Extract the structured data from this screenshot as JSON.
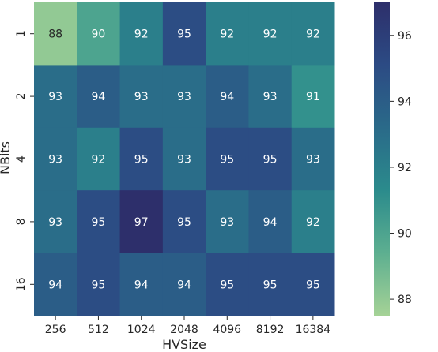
{
  "chart_data": {
    "type": "heatmap",
    "xlabel": "HVSize",
    "ylabel": "NBits",
    "x_categories": [
      "256",
      "512",
      "1024",
      "2048",
      "4096",
      "8192",
      "16384"
    ],
    "y_categories": [
      "1",
      "2",
      "4",
      "8",
      "16"
    ],
    "values": [
      [
        88,
        90,
        92,
        95,
        92,
        92,
        92
      ],
      [
        93,
        94,
        93,
        93,
        94,
        93,
        91
      ],
      [
        93,
        92,
        95,
        93,
        95,
        95,
        93
      ],
      [
        93,
        95,
        97,
        95,
        93,
        94,
        92
      ],
      [
        94,
        95,
        94,
        94,
        95,
        95,
        95
      ]
    ],
    "colorbar": {
      "ticks": [
        "88",
        "90",
        "92",
        "94",
        "96"
      ],
      "range": [
        87.5,
        97.0
      ],
      "colormap": "crest",
      "colors": [
        "#a5d296",
        "#5daf90",
        "#2b8b8c",
        "#2a6a89",
        "#2c4b84",
        "#2d2f6b"
      ]
    }
  }
}
